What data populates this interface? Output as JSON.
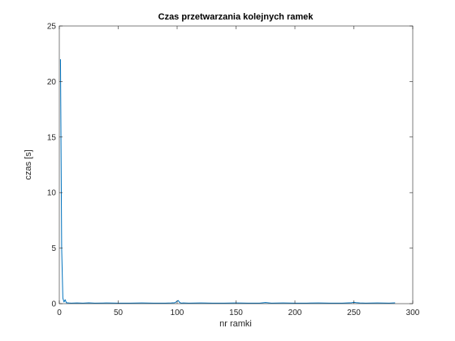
{
  "chart_data": {
    "type": "line",
    "title": "Czas przetwarzania kolejnych ramek",
    "xlabel": "nr ramki",
    "ylabel": "czas [s]",
    "xlim": [
      0,
      300
    ],
    "ylim": [
      0,
      25
    ],
    "xticks": [
      0,
      50,
      100,
      150,
      200,
      250,
      300
    ],
    "yticks": [
      0,
      5,
      10,
      15,
      20,
      25
    ],
    "xtick_labels": [
      "0",
      "50",
      "100",
      "150",
      "200",
      "250",
      "300"
    ],
    "ytick_labels": [
      "0",
      "5",
      "10",
      "15",
      "20",
      "25"
    ],
    "grid": false,
    "box": true,
    "line_color": "#0072BD",
    "series": [
      {
        "x": [
          1,
          2,
          3,
          4,
          5,
          6,
          8,
          10,
          15,
          20,
          25,
          30,
          40,
          50,
          60,
          70,
          80,
          90,
          95,
          98,
          100,
          101,
          102,
          103,
          104,
          105,
          110,
          120,
          130,
          140,
          150,
          160,
          170,
          175,
          180,
          190,
          200,
          210,
          220,
          230,
          240,
          248,
          250,
          252,
          255,
          260,
          270,
          280,
          285
        ],
        "y": [
          22,
          5,
          0.5,
          0.15,
          0.35,
          0.08,
          0.06,
          0.05,
          0.06,
          0.05,
          0.07,
          0.05,
          0.06,
          0.05,
          0.05,
          0.06,
          0.05,
          0.05,
          0.06,
          0.08,
          0.22,
          0.28,
          0.12,
          0.06,
          0.05,
          0.06,
          0.05,
          0.06,
          0.05,
          0.05,
          0.06,
          0.05,
          0.05,
          0.1,
          0.05,
          0.06,
          0.05,
          0.05,
          0.06,
          0.05,
          0.05,
          0.08,
          0.12,
          0.09,
          0.06,
          0.05,
          0.06,
          0.05,
          0.07
        ]
      }
    ]
  }
}
